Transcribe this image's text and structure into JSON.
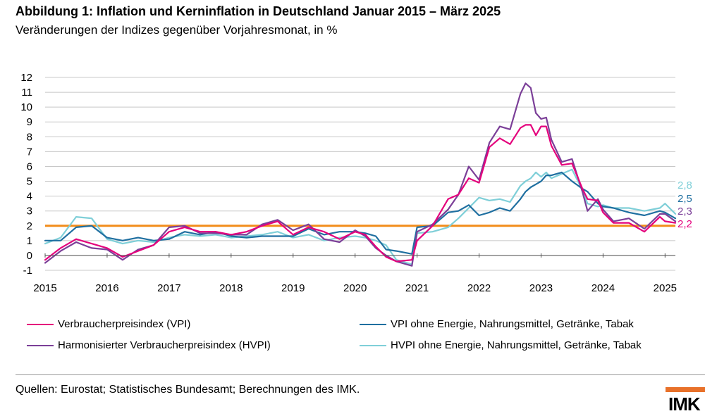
{
  "title": "Abbildung 1: Inflation und Kerninflation in Deutschland Januar 2015 – März 2025",
  "subtitle": "Veränderungen der Indizes gegenüber Vorjahresmonat, in %",
  "sources": "Quellen: Eurostat; Statistisches Bundesamt; Berechnungen des IMK.",
  "logo_text": "IMK",
  "colors": {
    "vpi": "#e4007c",
    "hvpi": "#7b3f98",
    "core_vpi": "#1f6fa0",
    "core_hvpi": "#7fcfd8",
    "target": "#f28c1a",
    "grid": "#c8c8c8",
    "logo": "#e8712a"
  },
  "chart_data": {
    "type": "line",
    "title": "Abbildung 1: Inflation und Kerninflation in Deutschland Januar 2015 – März 2025",
    "subtitle": "Veränderungen der Indizes gegenüber Vorjahresmonat, in %",
    "xlabel": "",
    "ylabel": "",
    "x_start": "2015-01",
    "x_end": "2025-03",
    "x_tick_labels": [
      "2015",
      "2016",
      "2017",
      "2018",
      "2019",
      "2020",
      "2021",
      "2022",
      "2023",
      "2024",
      "2025"
    ],
    "y_tick_labels": [
      "-1",
      "0",
      "1",
      "2",
      "3",
      "4",
      "5",
      "6",
      "7",
      "8",
      "9",
      "10",
      "11",
      "12"
    ],
    "ylim": [
      -1,
      12
    ],
    "grid": true,
    "legend_position": "bottom",
    "reference_line": {
      "y": 2
    },
    "end_labels": [
      "2,8",
      "2,5",
      "2,3",
      "2,2"
    ],
    "series": [
      {
        "name": "Verbraucherpreisindex (VPI)",
        "color": "#e4007c",
        "points": [
          [
            "2015-01",
            -0.3
          ],
          [
            "2015-04",
            0.5
          ],
          [
            "2015-07",
            1.1
          ],
          [
            "2015-10",
            0.8
          ],
          [
            "2016-01",
            0.5
          ],
          [
            "2016-04",
            -0.1
          ],
          [
            "2016-07",
            0.3
          ],
          [
            "2016-10",
            0.7
          ],
          [
            "2017-01",
            1.6
          ],
          [
            "2017-04",
            1.9
          ],
          [
            "2017-07",
            1.6
          ],
          [
            "2017-10",
            1.6
          ],
          [
            "2018-01",
            1.4
          ],
          [
            "2018-04",
            1.6
          ],
          [
            "2018-07",
            2.0
          ],
          [
            "2018-10",
            2.3
          ],
          [
            "2019-01",
            1.4
          ],
          [
            "2019-04",
            1.9
          ],
          [
            "2019-07",
            1.6
          ],
          [
            "2019-10",
            1.1
          ],
          [
            "2020-01",
            1.6
          ],
          [
            "2020-03",
            1.4
          ],
          [
            "2020-05",
            0.6
          ],
          [
            "2020-07",
            -0.1
          ],
          [
            "2020-09",
            -0.4
          ],
          [
            "2020-12",
            -0.3
          ],
          [
            "2021-01",
            1.0
          ],
          [
            "2021-04",
            2.0
          ],
          [
            "2021-07",
            3.8
          ],
          [
            "2021-09",
            4.1
          ],
          [
            "2021-11",
            5.2
          ],
          [
            "2022-01",
            4.9
          ],
          [
            "2022-03",
            7.3
          ],
          [
            "2022-05",
            7.9
          ],
          [
            "2022-07",
            7.5
          ],
          [
            "2022-09",
            8.6
          ],
          [
            "2022-10",
            8.8
          ],
          [
            "2022-11",
            8.8
          ],
          [
            "2022-12",
            8.1
          ],
          [
            "2023-01",
            8.7
          ],
          [
            "2023-02",
            8.7
          ],
          [
            "2023-03",
            7.4
          ],
          [
            "2023-05",
            6.1
          ],
          [
            "2023-07",
            6.2
          ],
          [
            "2023-09",
            4.5
          ],
          [
            "2023-10",
            3.8
          ],
          [
            "2023-12",
            3.7
          ],
          [
            "2024-01",
            2.9
          ],
          [
            "2024-03",
            2.2
          ],
          [
            "2024-06",
            2.2
          ],
          [
            "2024-09",
            1.6
          ],
          [
            "2024-12",
            2.6
          ],
          [
            "2025-01",
            2.3
          ],
          [
            "2025-03",
            2.2
          ]
        ]
      },
      {
        "name": "Harmonisierter Verbraucherpreisindex (HVPI)",
        "color": "#7b3f98",
        "points": [
          [
            "2015-01",
            -0.5
          ],
          [
            "2015-04",
            0.3
          ],
          [
            "2015-07",
            0.9
          ],
          [
            "2015-10",
            0.5
          ],
          [
            "2016-01",
            0.4
          ],
          [
            "2016-04",
            -0.3
          ],
          [
            "2016-07",
            0.4
          ],
          [
            "2016-10",
            0.7
          ],
          [
            "2017-01",
            1.9
          ],
          [
            "2017-04",
            2.0
          ],
          [
            "2017-07",
            1.5
          ],
          [
            "2017-10",
            1.5
          ],
          [
            "2018-01",
            1.4
          ],
          [
            "2018-04",
            1.4
          ],
          [
            "2018-07",
            2.1
          ],
          [
            "2018-10",
            2.4
          ],
          [
            "2019-01",
            1.7
          ],
          [
            "2019-04",
            2.1
          ],
          [
            "2019-07",
            1.1
          ],
          [
            "2019-10",
            0.9
          ],
          [
            "2020-01",
            1.7
          ],
          [
            "2020-03",
            1.3
          ],
          [
            "2020-05",
            0.5
          ],
          [
            "2020-07",
            0.0
          ],
          [
            "2020-09",
            -0.4
          ],
          [
            "2020-12",
            -0.7
          ],
          [
            "2021-01",
            1.6
          ],
          [
            "2021-04",
            2.1
          ],
          [
            "2021-07",
            3.1
          ],
          [
            "2021-09",
            4.1
          ],
          [
            "2021-11",
            6.0
          ],
          [
            "2022-01",
            5.1
          ],
          [
            "2022-03",
            7.6
          ],
          [
            "2022-05",
            8.7
          ],
          [
            "2022-07",
            8.5
          ],
          [
            "2022-09",
            10.9
          ],
          [
            "2022-10",
            11.6
          ],
          [
            "2022-11",
            11.3
          ],
          [
            "2022-12",
            9.6
          ],
          [
            "2023-01",
            9.2
          ],
          [
            "2023-02",
            9.3
          ],
          [
            "2023-03",
            7.8
          ],
          [
            "2023-05",
            6.3
          ],
          [
            "2023-07",
            6.5
          ],
          [
            "2023-09",
            4.3
          ],
          [
            "2023-10",
            3.0
          ],
          [
            "2023-12",
            3.8
          ],
          [
            "2024-01",
            3.1
          ],
          [
            "2024-03",
            2.3
          ],
          [
            "2024-06",
            2.5
          ],
          [
            "2024-09",
            1.8
          ],
          [
            "2024-12",
            2.8
          ],
          [
            "2025-01",
            2.8
          ],
          [
            "2025-03",
            2.3
          ]
        ]
      },
      {
        "name": "VPI ohne Energie, Nahrungsmittel, Getränke, Tabak",
        "color": "#1f6fa0",
        "points": [
          [
            "2015-01",
            1.0
          ],
          [
            "2015-04",
            1.0
          ],
          [
            "2015-07",
            1.9
          ],
          [
            "2015-10",
            2.0
          ],
          [
            "2016-01",
            1.2
          ],
          [
            "2016-04",
            1.0
          ],
          [
            "2016-07",
            1.2
          ],
          [
            "2016-10",
            1.0
          ],
          [
            "2017-01",
            1.1
          ],
          [
            "2017-04",
            1.6
          ],
          [
            "2017-07",
            1.4
          ],
          [
            "2017-10",
            1.6
          ],
          [
            "2018-01",
            1.3
          ],
          [
            "2018-04",
            1.2
          ],
          [
            "2018-07",
            1.3
          ],
          [
            "2018-10",
            1.3
          ],
          [
            "2019-01",
            1.3
          ],
          [
            "2019-04",
            1.8
          ],
          [
            "2019-07",
            1.4
          ],
          [
            "2019-10",
            1.6
          ],
          [
            "2020-01",
            1.6
          ],
          [
            "2020-03",
            1.5
          ],
          [
            "2020-05",
            1.3
          ],
          [
            "2020-07",
            0.4
          ],
          [
            "2020-09",
            0.3
          ],
          [
            "2020-12",
            0.1
          ],
          [
            "2021-01",
            1.9
          ],
          [
            "2021-04",
            2.0
          ],
          [
            "2021-07",
            2.9
          ],
          [
            "2021-09",
            3.0
          ],
          [
            "2021-11",
            3.4
          ],
          [
            "2022-01",
            2.7
          ],
          [
            "2022-03",
            2.9
          ],
          [
            "2022-05",
            3.2
          ],
          [
            "2022-07",
            3.0
          ],
          [
            "2022-09",
            3.8
          ],
          [
            "2022-10",
            4.3
          ],
          [
            "2022-11",
            4.6
          ],
          [
            "2022-12",
            4.8
          ],
          [
            "2023-01",
            5.0
          ],
          [
            "2023-02",
            5.4
          ],
          [
            "2023-03",
            5.4
          ],
          [
            "2023-05",
            5.6
          ],
          [
            "2023-07",
            5.0
          ],
          [
            "2023-09",
            4.5
          ],
          [
            "2023-10",
            4.3
          ],
          [
            "2023-12",
            3.5
          ],
          [
            "2024-01",
            3.3
          ],
          [
            "2024-03",
            3.2
          ],
          [
            "2024-06",
            2.9
          ],
          [
            "2024-09",
            2.7
          ],
          [
            "2024-12",
            3.0
          ],
          [
            "2025-01",
            2.9
          ],
          [
            "2025-03",
            2.5
          ]
        ]
      },
      {
        "name": "HVPI ohne Energie, Nahrungsmittel, Getränke, Tabak",
        "color": "#7fcfd8",
        "points": [
          [
            "2015-01",
            0.8
          ],
          [
            "2015-04",
            1.2
          ],
          [
            "2015-07",
            2.6
          ],
          [
            "2015-10",
            2.5
          ],
          [
            "2016-01",
            1.1
          ],
          [
            "2016-04",
            0.8
          ],
          [
            "2016-07",
            1.0
          ],
          [
            "2016-10",
            0.9
          ],
          [
            "2017-01",
            1.2
          ],
          [
            "2017-04",
            1.4
          ],
          [
            "2017-07",
            1.3
          ],
          [
            "2017-10",
            1.4
          ],
          [
            "2018-01",
            1.2
          ],
          [
            "2018-04",
            1.3
          ],
          [
            "2018-07",
            1.4
          ],
          [
            "2018-10",
            1.6
          ],
          [
            "2019-01",
            1.2
          ],
          [
            "2019-04",
            1.4
          ],
          [
            "2019-07",
            1.0
          ],
          [
            "2019-10",
            1.2
          ],
          [
            "2020-01",
            1.3
          ],
          [
            "2020-03",
            1.2
          ],
          [
            "2020-05",
            1.0
          ],
          [
            "2020-07",
            0.7
          ],
          [
            "2020-09",
            -0.3
          ],
          [
            "2020-12",
            -0.6
          ],
          [
            "2021-01",
            1.5
          ],
          [
            "2021-04",
            1.6
          ],
          [
            "2021-07",
            1.9
          ],
          [
            "2021-09",
            2.5
          ],
          [
            "2021-11",
            3.2
          ],
          [
            "2022-01",
            3.9
          ],
          [
            "2022-03",
            3.7
          ],
          [
            "2022-05",
            3.8
          ],
          [
            "2022-07",
            3.6
          ],
          [
            "2022-09",
            4.7
          ],
          [
            "2022-10",
            5.0
          ],
          [
            "2022-11",
            5.2
          ],
          [
            "2022-12",
            5.6
          ],
          [
            "2023-01",
            5.3
          ],
          [
            "2023-02",
            5.6
          ],
          [
            "2023-03",
            5.2
          ],
          [
            "2023-05",
            5.5
          ],
          [
            "2023-07",
            5.8
          ],
          [
            "2023-09",
            4.4
          ],
          [
            "2023-10",
            3.5
          ],
          [
            "2023-12",
            3.3
          ],
          [
            "2024-01",
            3.4
          ],
          [
            "2024-03",
            3.2
          ],
          [
            "2024-06",
            3.2
          ],
          [
            "2024-09",
            3.0
          ],
          [
            "2024-12",
            3.2
          ],
          [
            "2025-01",
            3.5
          ],
          [
            "2025-03",
            2.8
          ]
        ]
      }
    ]
  },
  "legend": [
    {
      "label": "Verbraucherpreisindex (VPI)",
      "color": "#e4007c"
    },
    {
      "label": "VPI ohne Energie, Nahrungsmittel, Getränke, Tabak",
      "color": "#1f6fa0"
    },
    {
      "label": "Harmonisierter Verbraucherpreisindex (HVPI)",
      "color": "#7b3f98"
    },
    {
      "label": "HVPI ohne Energie, Nahrungsmittel, Getränke, Tabak",
      "color": "#7fcfd8"
    }
  ]
}
